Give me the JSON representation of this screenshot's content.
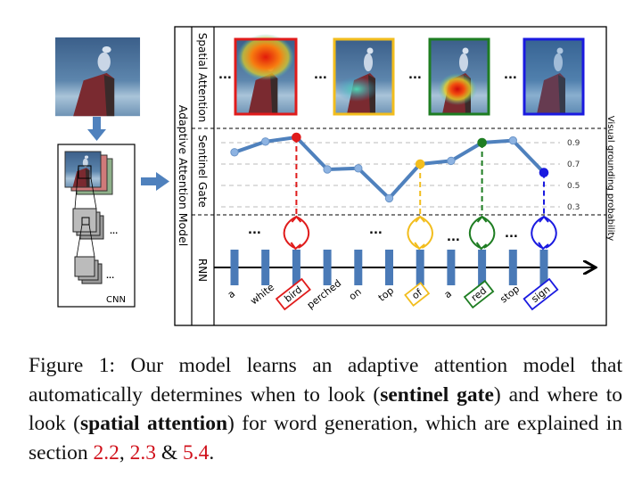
{
  "figure": {
    "cnn_label": "CNN",
    "outer_label": "Adaptive Attention Model",
    "rows": {
      "spatial": "Spatial Attention",
      "sentinel": "Sentinel Gate",
      "rnn": "RNN"
    },
    "ellipsis": "...",
    "thumbnail_colors": [
      "#e01b1b",
      "#f2bd1d",
      "#1e7d22",
      "#1a1ae0"
    ],
    "line_color": "#4f81bd",
    "bar_color": "#4a7ab7"
  },
  "chart_data": {
    "type": "line",
    "ylabel": "Visual grounding probability",
    "yticks": [
      "0.9",
      "0.7",
      "0.5",
      "0.3"
    ],
    "ylim": [
      0.25,
      0.97
    ],
    "grid": true,
    "words": [
      "a",
      "white",
      "bird",
      "perched",
      "on",
      "top",
      "of",
      "a",
      "red",
      "stop",
      "sign"
    ],
    "values": [
      0.81,
      0.91,
      0.95,
      0.65,
      0.66,
      0.38,
      0.7,
      0.73,
      0.9,
      0.92,
      0.62
    ],
    "highlighted": [
      {
        "word_index": 2,
        "color": "#e01b1b"
      },
      {
        "word_index": 6,
        "color": "#f2bd1d"
      },
      {
        "word_index": 8,
        "color": "#1e7d22"
      },
      {
        "word_index": 10,
        "color": "#1a1ae0"
      }
    ]
  },
  "caption": {
    "prefix": "Figure 1: Our model learns an adaptive attention model that automatically determines when to look (",
    "bold1": "sentinel gate",
    "mid1": ") and where to look (",
    "bold2": "spatial attention",
    "mid2": ") for word generation, which are explained in section ",
    "ref1": "2.2",
    "sep1": ", ",
    "ref2": "2.3",
    "sep2": " & ",
    "ref3": "5.4",
    "end": "."
  }
}
